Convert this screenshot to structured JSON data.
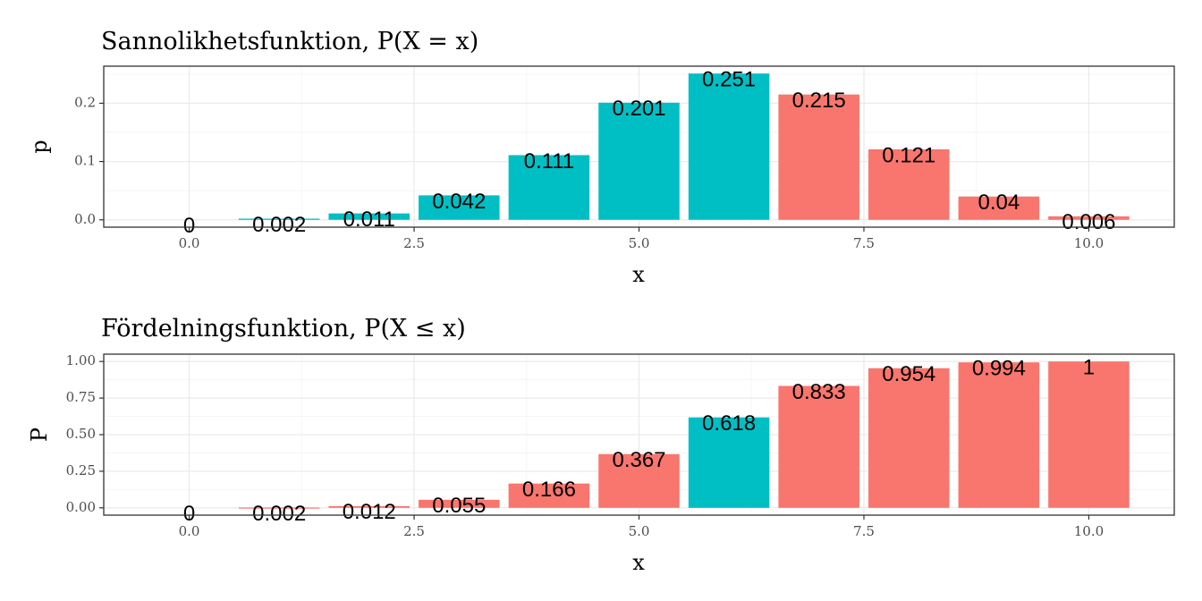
{
  "colors": {
    "teal": "#00BFC4",
    "salmon": "#F8766D",
    "grid_major": "#ebebeb",
    "grid_minor": "#f5f5f5",
    "panel_border": "#333333",
    "tick_text": "#4d4d4d"
  },
  "chart_data": [
    {
      "type": "bar",
      "title": "Sannolikhetsfunktion, P(X = x)",
      "xlabel": "x",
      "ylabel": "p",
      "x": [
        0,
        1,
        2,
        3,
        4,
        5,
        6,
        7,
        8,
        9,
        10
      ],
      "values": [
        0,
        0.002,
        0.011,
        0.042,
        0.111,
        0.201,
        0.251,
        0.215,
        0.121,
        0.04,
        0.006
      ],
      "labels": [
        "0",
        "0.002",
        "0.011",
        "0.042",
        "0.111",
        "0.201",
        "0.251",
        "0.215",
        "0.121",
        "0.04",
        "0.006"
      ],
      "bar_colors": [
        "teal",
        "teal",
        "teal",
        "teal",
        "teal",
        "teal",
        "teal",
        "salmon",
        "salmon",
        "salmon",
        "salmon"
      ],
      "xlim": [
        -0.95,
        10.95
      ],
      "ylim": [
        -0.0126,
        0.2636
      ],
      "x_ticks": [
        0,
        2.5,
        5,
        7.5,
        10
      ],
      "x_tick_labels": [
        "0.0",
        "2.5",
        "5.0",
        "7.5",
        "10.0"
      ],
      "y_ticks": [
        0,
        0.1,
        0.2
      ],
      "y_tick_labels": [
        "0.0",
        "0.1",
        "0.2"
      ],
      "y_minor_ticks": [
        0.05,
        0.15,
        0.25
      ],
      "grid": true,
      "legend": "none"
    },
    {
      "type": "bar",
      "title": "Fördelningsfunktion, P(X ≤ x)",
      "xlabel": "x",
      "ylabel": "P",
      "x": [
        0,
        1,
        2,
        3,
        4,
        5,
        6,
        7,
        8,
        9,
        10
      ],
      "values": [
        0,
        0.002,
        0.012,
        0.055,
        0.166,
        0.367,
        0.618,
        0.833,
        0.954,
        0.994,
        1
      ],
      "labels": [
        "0",
        "0.002",
        "0.012",
        "0.055",
        "0.166",
        "0.367",
        "0.618",
        "0.833",
        "0.954",
        "0.994",
        "1"
      ],
      "bar_colors": [
        "salmon",
        "salmon",
        "salmon",
        "salmon",
        "salmon",
        "salmon",
        "teal",
        "salmon",
        "salmon",
        "salmon",
        "salmon"
      ],
      "xlim": [
        -0.95,
        10.95
      ],
      "ylim": [
        -0.05,
        1.05
      ],
      "x_ticks": [
        0,
        2.5,
        5,
        7.5,
        10
      ],
      "x_tick_labels": [
        "0.0",
        "2.5",
        "5.0",
        "7.5",
        "10.0"
      ],
      "y_ticks": [
        0,
        0.25,
        0.5,
        0.75,
        1
      ],
      "y_tick_labels": [
        "0.00",
        "0.25",
        "0.50",
        "0.75",
        "1.00"
      ],
      "y_minor_ticks": [
        0.125,
        0.375,
        0.625,
        0.875
      ],
      "grid": true,
      "legend": "none"
    }
  ]
}
